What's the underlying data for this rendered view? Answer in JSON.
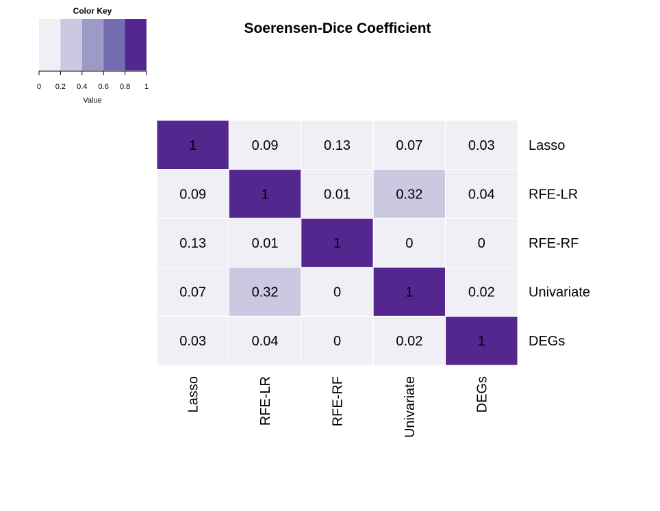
{
  "chart_data": {
    "type": "heatmap",
    "title": "Soerensen-Dice Coefficient",
    "rows": [
      "Lasso",
      "RFE-LR",
      "RFE-RF",
      "Univariate",
      "DEGs"
    ],
    "columns": [
      "Lasso",
      "RFE-LR",
      "RFE-RF",
      "Univariate",
      "DEGs"
    ],
    "values": [
      [
        1,
        0.09,
        0.13,
        0.07,
        0.03
      ],
      [
        0.09,
        1,
        0.01,
        0.32,
        0.04
      ],
      [
        0.13,
        0.01,
        1,
        0,
        0
      ],
      [
        0.07,
        0.32,
        0,
        1,
        0.02
      ],
      [
        0.03,
        0.04,
        0,
        0.02,
        1
      ]
    ],
    "cell_labels": [
      [
        "1",
        "0.09",
        "0.13",
        "0.07",
        "0.03"
      ],
      [
        "0.09",
        "1",
        "0.01",
        "0.32",
        "0.04"
      ],
      [
        "0.13",
        "0.01",
        "1",
        "0",
        "0"
      ],
      [
        "0.07",
        "0.32",
        "0",
        "1",
        "0.02"
      ],
      [
        "0.03",
        "0.04",
        "0",
        "0.02",
        "1"
      ]
    ],
    "color_key": {
      "title": "Color Key",
      "xlabel": "Value",
      "range": [
        0,
        1
      ],
      "breaks": [
        0,
        0.2,
        0.4,
        0.6,
        0.8,
        1
      ],
      "tick_labels": [
        "0",
        "0.2",
        "0.4",
        "0.6",
        "0.8",
        "1"
      ],
      "colors": [
        "#f0eff6",
        "#cbc9e2",
        "#9e9ac8",
        "#756bb1",
        "#54278f"
      ]
    }
  }
}
